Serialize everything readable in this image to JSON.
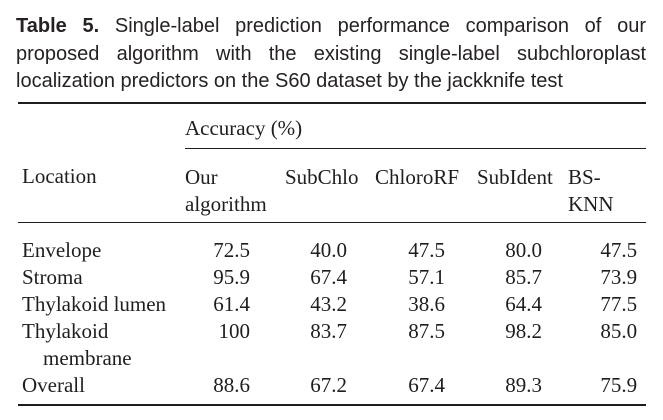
{
  "caption": {
    "label": "Table 5.",
    "line1": "Single-label prediction performance comparison of our",
    "line2": "proposed algorithm with the existing single-label subchloroplast",
    "line3": "localization predictors on the S60 dataset by the jackknife test"
  },
  "table": {
    "spanner": "Accuracy (%)",
    "columns": {
      "location": "Location",
      "our_line1": "Our",
      "our_line2": "algorithm",
      "subchlo": "SubChlo",
      "chlororf": "ChloroRF",
      "subident": "SubIdent",
      "bsknn": "BS-KNN"
    },
    "rows": [
      {
        "location": "Envelope",
        "location2": "",
        "values": [
          "72.5",
          "40.0",
          "47.5",
          "80.0",
          "47.5"
        ]
      },
      {
        "location": "Stroma",
        "location2": "",
        "values": [
          "95.9",
          "67.4",
          "57.1",
          "85.7",
          "73.9"
        ]
      },
      {
        "location": "Thylakoid lumen",
        "location2": "",
        "values": [
          "61.4",
          "43.2",
          "38.6",
          "64.4",
          "77.5"
        ]
      },
      {
        "location": "Thylakoid",
        "location2": "membrane",
        "values": [
          "100",
          "83.7",
          "87.5",
          "98.2",
          "85.0"
        ]
      },
      {
        "location": "Overall",
        "location2": "",
        "values": [
          "88.6",
          "67.2",
          "67.4",
          "89.3",
          "75.9"
        ]
      }
    ]
  },
  "colors": {
    "background": "#ffffff",
    "text": "#1e1e1e",
    "rule": "#1e1e1e"
  }
}
